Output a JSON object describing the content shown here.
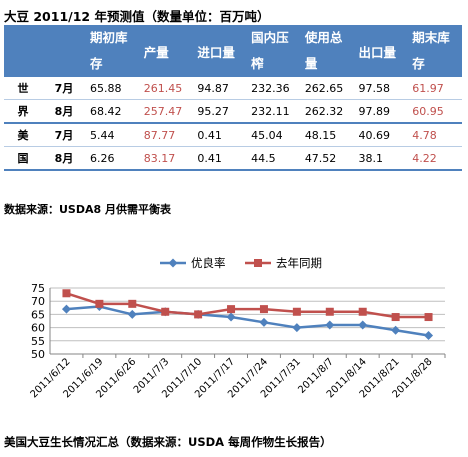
{
  "title": "大豆 2011/12 年预测值（数量单位：百万吨）",
  "table": {
    "headers": [
      "期初库存",
      "产量",
      "进口量",
      "国内压榨",
      "使用总量",
      "出口量",
      "期末库存"
    ],
    "header_split": [
      [
        "期初库",
        "存"
      ],
      [
        "产量",
        ""
      ],
      [
        "进口量",
        ""
      ],
      [
        "国内压",
        "榨"
      ],
      [
        "使用总",
        "量"
      ],
      [
        "出口量",
        ""
      ],
      [
        "期末库",
        "存"
      ]
    ],
    "groups": [
      {
        "country_chars": [
          "世",
          "界"
        ],
        "rows": [
          {
            "month": "7月",
            "values": [
              "65.88",
              "261.45",
              "94.87",
              "232.36",
              "262.65",
              "97.58",
              "61.97"
            ]
          },
          {
            "month": "8月",
            "values": [
              "68.42",
              "257.47",
              "95.27",
              "232.11",
              "262.32",
              "97.89",
              "60.95"
            ]
          }
        ]
      },
      {
        "country_chars": [
          "美",
          "国"
        ],
        "rows": [
          {
            "month": "7月",
            "values": [
              "5.44",
              "87.77",
              "0.41",
              "45.04",
              "48.15",
              "40.69",
              "4.78"
            ]
          },
          {
            "month": "8月",
            "values": [
              "6.26",
              "83.17",
              "0.41",
              "44.5",
              "47.52",
              "38.1",
              "4.22"
            ]
          }
        ]
      }
    ],
    "highlight_color": "#c0504d",
    "header_bg": "#4f81bd"
  },
  "source_note": "数据来源：USDA8 月供需平衡表",
  "chart_data": {
    "type": "line",
    "categories": [
      "2011/6/12",
      "2011/6/19",
      "2011/6/26",
      "2011/7/3",
      "2011/7/10",
      "2011/7/17",
      "2011/7/24",
      "2011/7/31",
      "2011/8/7",
      "2011/8/14",
      "2011/8/21",
      "2011/8/28"
    ],
    "series": [
      {
        "name": "优良率",
        "color": "#4f81bd",
        "marker": "diamond",
        "values": [
          67,
          68,
          65,
          66,
          65,
          64,
          62,
          60,
          61,
          61,
          59,
          57
        ]
      },
      {
        "name": "去年同期",
        "color": "#c0504d",
        "marker": "square",
        "values": [
          73,
          69,
          69,
          66,
          65,
          67,
          67,
          66,
          66,
          66,
          64,
          64
        ]
      }
    ],
    "ylim": [
      50,
      75
    ],
    "yticks": [
      50,
      55,
      60,
      65,
      70,
      75
    ],
    "grid": true,
    "legend": "top"
  },
  "caption": "美国大豆生长情况汇总（数据来源：USDA 每周作物生长报告）"
}
